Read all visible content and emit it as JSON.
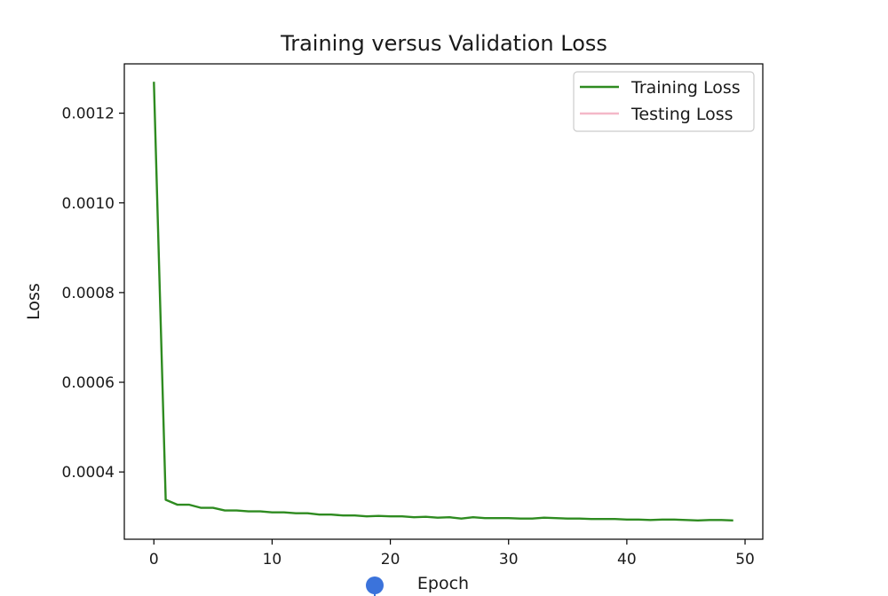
{
  "chart_data": {
    "type": "line",
    "title": "Training versus Validation Loss",
    "xlabel": "Epoch",
    "ylabel": "Loss",
    "xlim": [
      -2.5,
      51.5
    ],
    "ylim": [
      0.00025,
      0.00131
    ],
    "xticks": [
      0,
      10,
      20,
      30,
      40,
      50
    ],
    "xtick_labels": [
      "0",
      "10",
      "20",
      "30",
      "40",
      "50"
    ],
    "yticks": [
      0.0004,
      0.0006,
      0.0008,
      0.001,
      0.0012
    ],
    "ytick_labels": [
      "0.0004",
      "0.0006",
      "0.0008",
      "0.0010",
      "0.0012"
    ],
    "grid": false,
    "legend_position": "top-right",
    "series": [
      {
        "name": "Training Loss",
        "color": "#2e8b20",
        "x": [
          0,
          1,
          2,
          3,
          4,
          5,
          6,
          7,
          8,
          9,
          10,
          11,
          12,
          13,
          14,
          15,
          16,
          17,
          18,
          19,
          20,
          21,
          22,
          23,
          24,
          25,
          26,
          27,
          28,
          29,
          30,
          31,
          32,
          33,
          34,
          35,
          36,
          37,
          38,
          39,
          40,
          41,
          42,
          43,
          44,
          45,
          46,
          47,
          48,
          49
        ],
        "y": [
          0.00127,
          0.000338,
          0.000327,
          0.000327,
          0.00032,
          0.00032,
          0.000314,
          0.000314,
          0.000312,
          0.000312,
          0.00031,
          0.00031,
          0.000308,
          0.000308,
          0.000305,
          0.000305,
          0.000303,
          0.000303,
          0.000301,
          0.000302,
          0.000301,
          0.000301,
          0.000299,
          0.0003,
          0.000298,
          0.000299,
          0.000296,
          0.000299,
          0.000297,
          0.000297,
          0.000297,
          0.000296,
          0.000296,
          0.000298,
          0.000297,
          0.000296,
          0.000296,
          0.000295,
          0.000295,
          0.000295,
          0.000294,
          0.000294,
          0.000293,
          0.000294,
          0.000294,
          0.000293,
          0.000292,
          0.000293,
          0.000293,
          0.000292
        ]
      },
      {
        "name": "Testing Loss",
        "color": "#f4b8c8",
        "x": [],
        "y": []
      }
    ]
  }
}
